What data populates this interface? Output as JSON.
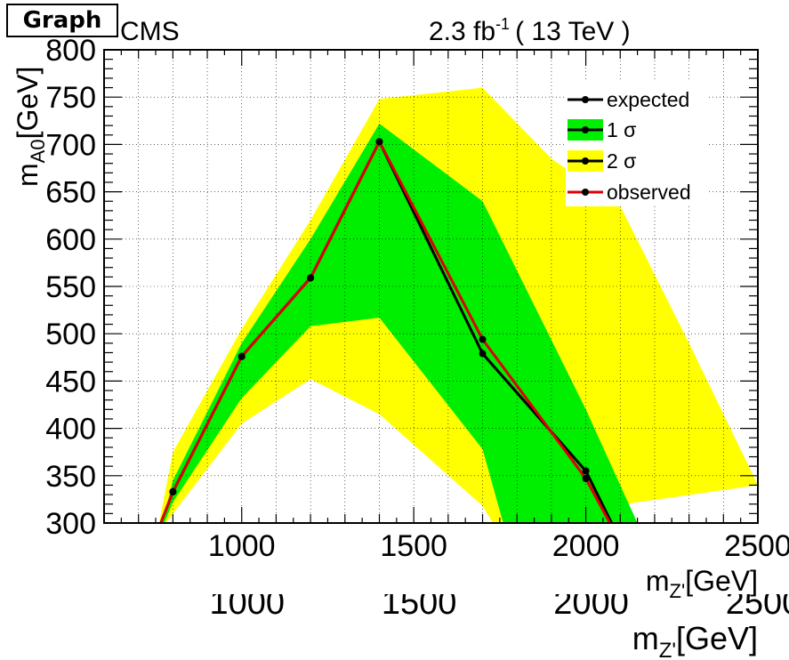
{
  "header": {
    "graph_tag": "Graph",
    "experiment": "CMS",
    "lumi_value": "2.3 fb",
    "lumi_exponent": "-1",
    "energy": "( 13 TeV )"
  },
  "chart_data": {
    "type": "line",
    "xlabel_main": "m",
    "xlabel_sub": "Z'",
    "xlabel_unit": "[GeV]",
    "ylabel_main": "m",
    "ylabel_sub": "A0",
    "ylabel_unit": "[GeV]",
    "xlim": [
      600,
      2500
    ],
    "ylim": [
      300,
      800
    ],
    "x_ticks": [
      1000,
      1500,
      2000,
      2500
    ],
    "y_ticks": [
      300,
      350,
      400,
      450,
      500,
      550,
      600,
      650,
      700,
      750,
      800
    ],
    "grid": true,
    "legend_position": "top-right",
    "legend": [
      {
        "label": "expected",
        "style": "line"
      },
      {
        "label": "1 σ",
        "style": "fill-green"
      },
      {
        "label": "2 σ",
        "style": "fill-yellow"
      },
      {
        "label": "observed",
        "style": "line-red"
      }
    ],
    "colors": {
      "expected": "#000000",
      "observed": "#dd0000",
      "band_1sigma": "#00ee00",
      "band_2sigma": "#ffff00"
    },
    "series": [
      {
        "name": "expected",
        "points": [
          [
            765,
            300
          ],
          [
            800,
            333
          ],
          [
            1000,
            476
          ],
          [
            1200,
            559
          ],
          [
            1400,
            703
          ],
          [
            1700,
            479
          ],
          [
            2000,
            355
          ],
          [
            2075,
            300
          ]
        ]
      },
      {
        "name": "observed",
        "points": [
          [
            765,
            300
          ],
          [
            800,
            333
          ],
          [
            1000,
            476
          ],
          [
            1200,
            559
          ],
          [
            1400,
            703
          ],
          [
            1700,
            494
          ],
          [
            2000,
            347
          ],
          [
            2070,
            300
          ]
        ]
      }
    ],
    "bands": {
      "sigma2": {
        "upper": [
          [
            760,
            300
          ],
          [
            800,
            375
          ],
          [
            1000,
            505
          ],
          [
            1200,
            620
          ],
          [
            1400,
            748
          ],
          [
            1700,
            760
          ],
          [
            1900,
            685
          ],
          [
            2100,
            635
          ],
          [
            2300,
            490
          ],
          [
            2500,
            340
          ]
        ],
        "lower": [
          [
            780,
            300
          ],
          [
            800,
            310
          ],
          [
            1000,
            405
          ],
          [
            1200,
            452
          ],
          [
            1400,
            415
          ],
          [
            1700,
            318
          ],
          [
            1730,
            300
          ]
        ]
      },
      "sigma1": {
        "upper": [
          [
            770,
            300
          ],
          [
            800,
            345
          ],
          [
            1000,
            490
          ],
          [
            1200,
            600
          ],
          [
            1400,
            722
          ],
          [
            1700,
            640
          ],
          [
            2000,
            420
          ],
          [
            2150,
            300
          ]
        ],
        "lower": [
          [
            775,
            300
          ],
          [
            800,
            322
          ],
          [
            1000,
            432
          ],
          [
            1200,
            508
          ],
          [
            1400,
            517
          ],
          [
            1700,
            378
          ],
          [
            1760,
            300
          ]
        ]
      }
    }
  }
}
